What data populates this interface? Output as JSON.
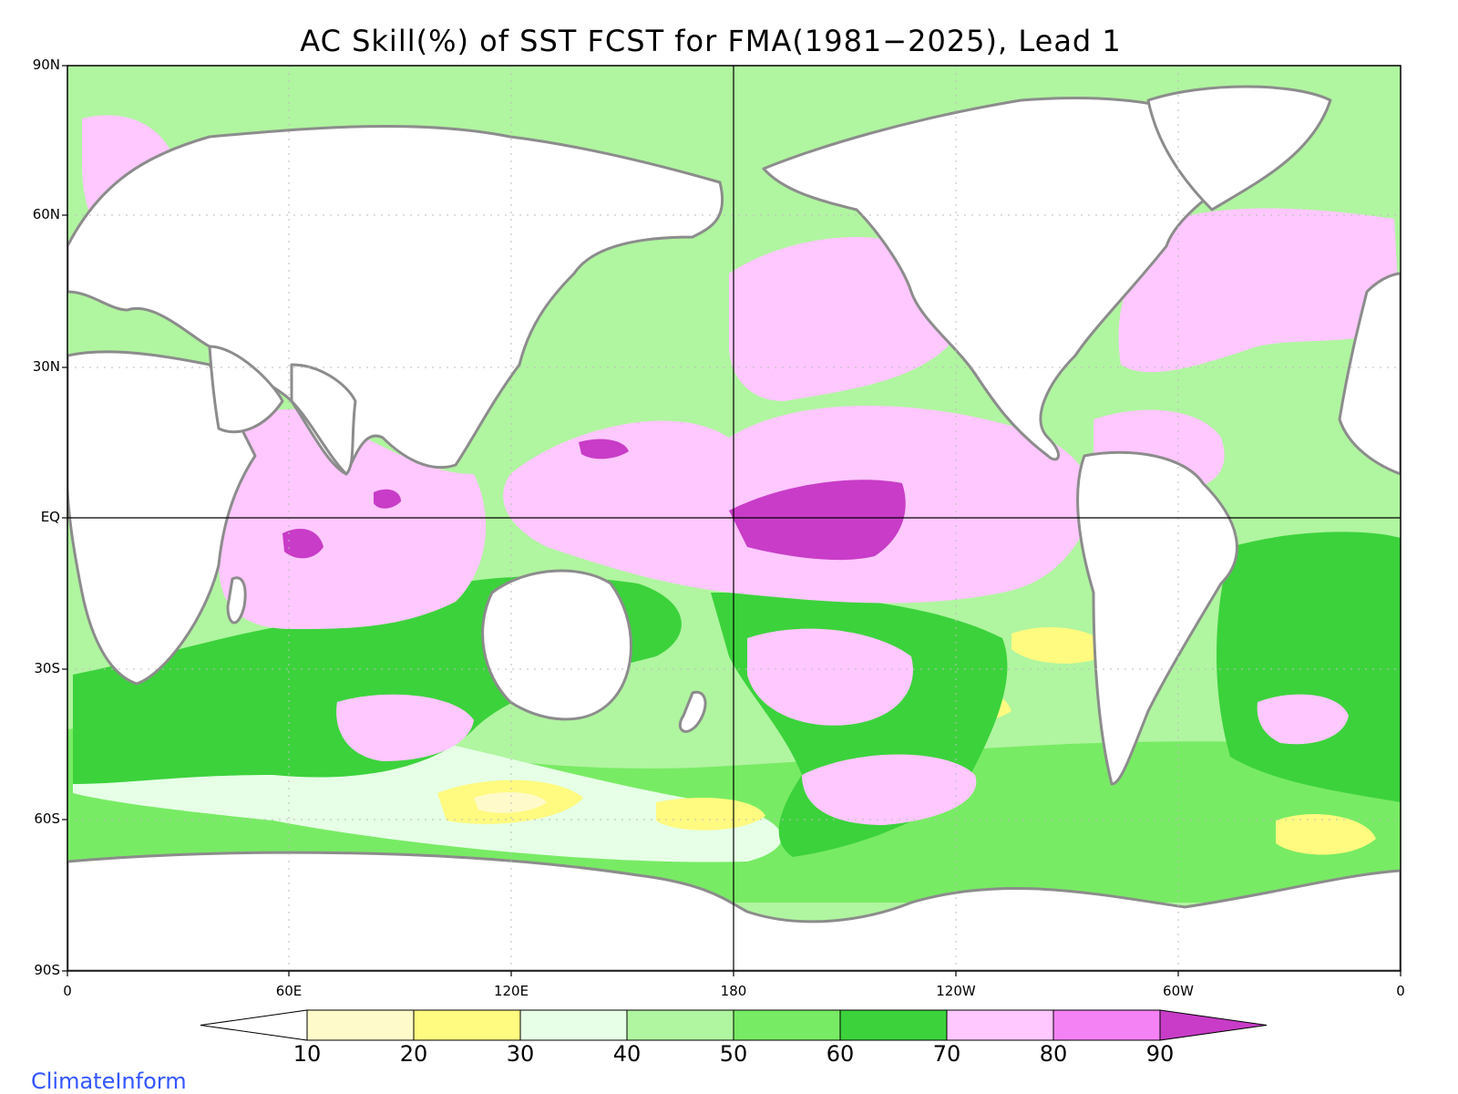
{
  "title": "AC Skill(%) of SST FCST for FMA(1981−2025), Lead 1",
  "lat_labels": [
    "90N",
    "60N",
    "30N",
    "EQ",
    "30S",
    "60S",
    "90S"
  ],
  "lon_labels": [
    "0",
    "60E",
    "120E",
    "180",
    "120W",
    "60W",
    "0"
  ],
  "colorbar": {
    "levels": [
      "10",
      "20",
      "30",
      "40",
      "50",
      "60",
      "70",
      "80",
      "90"
    ],
    "colors": [
      "#ffffff",
      "#fffaca",
      "#fffa80",
      "#e6ffe6",
      "#b0f5a0",
      "#78eb64",
      "#3cd23c",
      "#ffc8ff",
      "#f582f5",
      "#c83cc8"
    ]
  },
  "credit": "ClimateInform",
  "colors": {
    "land": "#ffffff",
    "coastline": "#8c8c8c",
    "frame": "#000000",
    "grid": "#bdbdbd",
    "credit": "#3355ff"
  }
}
